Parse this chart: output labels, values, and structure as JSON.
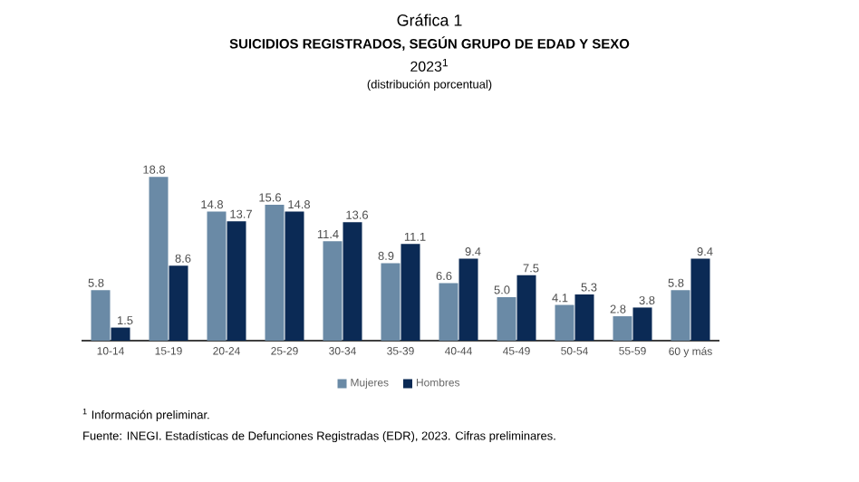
{
  "chart_data": {
    "type": "bar",
    "title": "Gráfica 1",
    "subtitle": "SUICIDIOS REGISTRADOS, SEGÚN GRUPO DE EDAD Y SEXO",
    "annotations": [
      "2023$^{1}$",
      "(distribución porcentual)",
      "$^{1}$ Información preliminar.",
      "Fuente: INEGI. Estadísticas de Defunciones Registradas (EDR), 2023. Cifras preliminares."
    ],
    "categories": [
      "10-14",
      "15-19",
      "20-24",
      "25-29",
      "30-34",
      "35-39",
      "40-44",
      "45-49",
      "50-54",
      "55-59",
      "60 y más"
    ],
    "series": [
      {
        "name": "Mujeres",
        "color": "#6a8aa6",
        "values": [
          5.8,
          18.8,
          14.8,
          15.6,
          11.4,
          8.9,
          6.6,
          5.0,
          4.1,
          2.8,
          5.8
        ],
        "value_labels": [
          "5.8",
          "18.8",
          "14.8",
          "15.6",
          "11.4",
          "8.9",
          "6.6",
          "5.0",
          "4.1",
          "2.8",
          "5.8"
        ]
      },
      {
        "name": "Hombres",
        "color": "#0b2a55",
        "values": [
          1.5,
          8.6,
          13.7,
          14.8,
          13.6,
          11.1,
          9.4,
          7.5,
          5.3,
          3.8,
          9.4
        ],
        "value_labels": [
          "1.5",
          "8.6",
          "13.7",
          "14.8",
          "13.6",
          "11.1",
          "9.4",
          "7.5",
          "5.3",
          "3.8",
          "9.4"
        ]
      }
    ],
    "legend": "bottom"
  }
}
